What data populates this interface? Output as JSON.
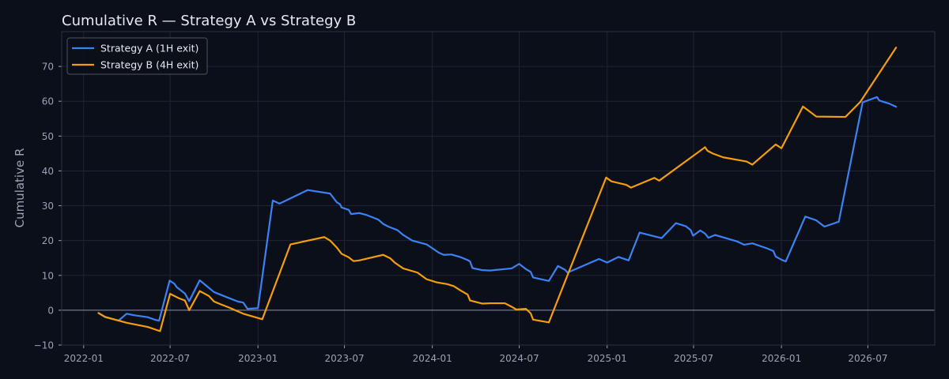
{
  "chart_data": {
    "type": "line",
    "title": "Cumulative R — Strategy A vs Strategy B",
    "xlabel": "",
    "ylabel": "Cumulative R",
    "x_type": "date",
    "xlim": [
      "2021-11-16",
      "2026-11-18"
    ],
    "ylim": [
      -10,
      80
    ],
    "x_ticks": [
      "2022-01-01",
      "2022-07-01",
      "2023-01-01",
      "2023-07-01",
      "2024-01-01",
      "2024-07-01",
      "2025-01-01",
      "2025-07-01",
      "2026-01-01",
      "2026-07-01"
    ],
    "x_tick_labels": [
      "2022-01",
      "2022-07",
      "2023-01",
      "2023-07",
      "2024-01",
      "2024-07",
      "2025-01",
      "2025-07",
      "2026-01",
      "2026-07"
    ],
    "y_ticks": [
      -10,
      0,
      10,
      20,
      30,
      40,
      50,
      60,
      70
    ],
    "grid": true,
    "legend": "top-left",
    "colors": {
      "background": "#0b0f19",
      "grid": "#1f2533",
      "zero_line": "#8a93a6",
      "text": "#e6e9ef",
      "tick_text": "#9aa3b5",
      "spine": "#2a3142"
    },
    "series": [
      {
        "name": "Strategy A (1H exit)",
        "color": "#3b82f6",
        "points": [
          [
            "2022-02-01",
            -0.8
          ],
          [
            "2022-02-15",
            -2.0
          ],
          [
            "2022-03-15",
            -3.0
          ],
          [
            "2022-04-01",
            -1.0
          ],
          [
            "2022-04-15",
            -1.4
          ],
          [
            "2022-05-15",
            -2.0
          ],
          [
            "2022-06-01",
            -2.8
          ],
          [
            "2022-06-08",
            -3.0
          ],
          [
            "2022-06-30",
            8.5
          ],
          [
            "2022-07-10",
            7.6
          ],
          [
            "2022-07-15",
            6.6
          ],
          [
            "2022-08-01",
            4.8
          ],
          [
            "2022-08-10",
            2.6
          ],
          [
            "2022-09-01",
            8.6
          ],
          [
            "2022-09-15",
            7.0
          ],
          [
            "2022-10-01",
            5.2
          ],
          [
            "2022-11-01",
            3.5
          ],
          [
            "2022-11-20",
            2.5
          ],
          [
            "2022-12-01",
            2.2
          ],
          [
            "2022-12-10",
            0.4
          ],
          [
            "2023-01-01",
            0.6
          ],
          [
            "2023-02-01",
            31.5
          ],
          [
            "2023-02-15",
            30.6
          ],
          [
            "2023-04-15",
            34.5
          ],
          [
            "2023-06-01",
            33.5
          ],
          [
            "2023-06-15",
            31.0
          ],
          [
            "2023-06-22",
            30.4
          ],
          [
            "2023-06-25",
            29.5
          ],
          [
            "2023-07-10",
            28.8
          ],
          [
            "2023-07-15",
            27.6
          ],
          [
            "2023-08-01",
            27.9
          ],
          [
            "2023-08-15",
            27.4
          ],
          [
            "2023-09-01",
            26.5
          ],
          [
            "2023-09-10",
            26.0
          ],
          [
            "2023-09-20",
            24.8
          ],
          [
            "2023-10-01",
            24.0
          ],
          [
            "2023-10-20",
            23.0
          ],
          [
            "2023-11-01",
            21.6
          ],
          [
            "2023-11-20",
            20.0
          ],
          [
            "2023-12-20",
            18.9
          ],
          [
            "2024-01-15",
            16.5
          ],
          [
            "2024-01-25",
            15.9
          ],
          [
            "2024-02-10",
            16.0
          ],
          [
            "2024-03-01",
            15.2
          ],
          [
            "2024-03-15",
            14.4
          ],
          [
            "2024-03-20",
            14.0
          ],
          [
            "2024-03-25",
            12.1
          ],
          [
            "2024-04-15",
            11.5
          ],
          [
            "2024-05-01",
            11.4
          ],
          [
            "2024-05-15",
            11.6
          ],
          [
            "2024-06-15",
            12.0
          ],
          [
            "2024-07-01",
            13.3
          ],
          [
            "2024-07-15",
            11.8
          ],
          [
            "2024-07-25",
            11.0
          ],
          [
            "2024-07-30",
            9.4
          ],
          [
            "2024-09-01",
            8.4
          ],
          [
            "2024-09-20",
            12.7
          ],
          [
            "2024-10-05",
            11.6
          ],
          [
            "2024-10-10",
            10.8
          ],
          [
            "2024-12-15",
            14.7
          ],
          [
            "2025-01-01",
            13.7
          ],
          [
            "2025-01-25",
            15.3
          ],
          [
            "2025-02-15",
            14.3
          ],
          [
            "2025-03-10",
            22.3
          ],
          [
            "2025-04-10",
            21.2
          ],
          [
            "2025-04-25",
            20.7
          ],
          [
            "2025-05-25",
            25.0
          ],
          [
            "2025-06-15",
            24.1
          ],
          [
            "2025-06-25",
            23.0
          ],
          [
            "2025-06-30",
            21.4
          ],
          [
            "2025-07-15",
            22.9
          ],
          [
            "2025-07-25",
            22.0
          ],
          [
            "2025-08-01",
            20.8
          ],
          [
            "2025-08-15",
            21.6
          ],
          [
            "2025-10-01",
            19.7
          ],
          [
            "2025-10-15",
            18.8
          ],
          [
            "2025-11-01",
            19.2
          ],
          [
            "2025-12-01",
            17.8
          ],
          [
            "2025-12-15",
            17.0
          ],
          [
            "2025-12-20",
            15.4
          ],
          [
            "2026-01-01",
            14.5
          ],
          [
            "2026-01-10",
            14.0
          ],
          [
            "2026-02-20",
            26.9
          ],
          [
            "2026-03-15",
            25.8
          ],
          [
            "2026-04-01",
            24.0
          ],
          [
            "2026-05-01",
            25.4
          ],
          [
            "2026-06-20",
            59.7
          ],
          [
            "2026-07-20",
            61.2
          ],
          [
            "2026-07-25",
            60.2
          ],
          [
            "2026-08-15",
            59.3
          ],
          [
            "2026-08-29",
            58.4
          ]
        ]
      },
      {
        "name": "Strategy B (4H exit)",
        "color": "#f59e0b",
        "points": [
          [
            "2022-02-01",
            -0.8
          ],
          [
            "2022-02-15",
            -1.9
          ],
          [
            "2022-04-01",
            -3.6
          ],
          [
            "2022-05-15",
            -4.8
          ],
          [
            "2022-06-10",
            -6.0
          ],
          [
            "2022-07-01",
            4.7
          ],
          [
            "2022-07-20",
            3.4
          ],
          [
            "2022-08-01",
            2.8
          ],
          [
            "2022-08-10",
            0.0
          ],
          [
            "2022-09-01",
            5.5
          ],
          [
            "2022-09-20",
            4.1
          ],
          [
            "2022-10-01",
            2.5
          ],
          [
            "2022-10-15",
            1.7
          ],
          [
            "2022-11-01",
            0.8
          ],
          [
            "2022-12-01",
            -1.0
          ],
          [
            "2023-01-10",
            -2.6
          ],
          [
            "2023-03-10",
            18.9
          ],
          [
            "2023-05-20",
            21.0
          ],
          [
            "2023-06-01",
            20.0
          ],
          [
            "2023-06-15",
            18.0
          ],
          [
            "2023-06-25",
            16.2
          ],
          [
            "2023-07-10",
            15.2
          ],
          [
            "2023-07-20",
            14.1
          ],
          [
            "2023-08-01",
            14.3
          ],
          [
            "2023-09-20",
            15.9
          ],
          [
            "2023-10-05",
            14.9
          ],
          [
            "2023-10-15",
            13.6
          ],
          [
            "2023-11-01",
            12.0
          ],
          [
            "2023-12-01",
            10.8
          ],
          [
            "2023-12-20",
            8.9
          ],
          [
            "2024-01-10",
            8.0
          ],
          [
            "2024-02-01",
            7.5
          ],
          [
            "2024-02-15",
            6.9
          ],
          [
            "2024-03-01",
            5.6
          ],
          [
            "2024-03-15",
            4.5
          ],
          [
            "2024-03-20",
            2.8
          ],
          [
            "2024-04-15",
            1.9
          ],
          [
            "2024-05-01",
            2.0
          ],
          [
            "2024-06-01",
            2.0
          ],
          [
            "2024-06-15",
            1.0
          ],
          [
            "2024-06-25",
            0.2
          ],
          [
            "2024-07-15",
            0.4
          ],
          [
            "2024-07-25",
            -0.9
          ],
          [
            "2024-07-30",
            -2.7
          ],
          [
            "2024-09-01",
            -3.5
          ],
          [
            "2024-12-30",
            38.1
          ],
          [
            "2025-01-10",
            37.0
          ],
          [
            "2025-02-10",
            36.0
          ],
          [
            "2025-02-20",
            35.2
          ],
          [
            "2025-04-10",
            38.0
          ],
          [
            "2025-04-20",
            37.2
          ],
          [
            "2025-07-25",
            46.8
          ],
          [
            "2025-07-30",
            45.8
          ],
          [
            "2025-08-10",
            45.0
          ],
          [
            "2025-09-01",
            43.9
          ],
          [
            "2025-10-20",
            42.7
          ],
          [
            "2025-11-01",
            41.8
          ],
          [
            "2025-12-20",
            47.6
          ],
          [
            "2026-01-01",
            46.5
          ],
          [
            "2026-02-15",
            58.5
          ],
          [
            "2026-03-15",
            55.6
          ],
          [
            "2026-05-15",
            55.5
          ],
          [
            "2026-06-15",
            59.8
          ],
          [
            "2026-08-29",
            75.4
          ]
        ]
      }
    ]
  }
}
